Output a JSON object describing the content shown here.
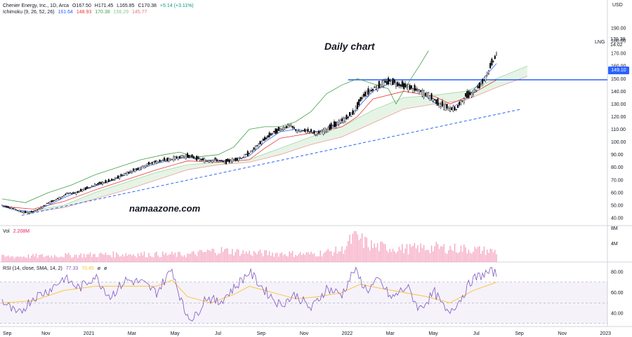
{
  "title": "Chenier Energy, Inc., 1D, Arca",
  "ohlc": {
    "open": "O167.50",
    "high": "H171.45",
    "low": "L165.85",
    "close": "C170.38",
    "change": "+5.14 (+3.11%)"
  },
  "ichimoku": {
    "label": "Ichimoku (9, 26, 52, 26)",
    "values": [
      "161.64",
      "148.93",
      "170.38",
      "156.29",
      "145.77"
    ]
  },
  "volume": {
    "label": "Vol",
    "value": "2.208M"
  },
  "rsi": {
    "label": "RSI (14, close, SMA, 14, 2)",
    "values": [
      "77.33",
      "70.45",
      "ø",
      "ø"
    ]
  },
  "symbol": "LNG",
  "currency": "USD",
  "last_price": "170.38",
  "countdown": "14:02",
  "marked_level": "149.10",
  "annotation_text": "Daily chart",
  "watermark_text": "namaazone.com",
  "colors": {
    "tenkan": "#2962ff",
    "kijun": "#e53935",
    "chikou": "#43a047",
    "span_a": "#a5d6a7",
    "span_b": "#ef9a9a",
    "rsi": "#7e57c2",
    "rsi_ma": "#fbc02d",
    "volume": "#f48fb1",
    "level": "#2962ff",
    "trendline": "#2962ff"
  },
  "chart_data": {
    "type": "candlestick",
    "price_axis": {
      "min": 40,
      "max": 190,
      "ticks": [
        "190.00",
        "180.00",
        "170.00",
        "160.00",
        "150.00",
        "140.00",
        "130.00",
        "120.00",
        "110.00",
        "100.00",
        "90.00",
        "80.00",
        "70.00",
        "60.00",
        "50.00",
        "40.00"
      ]
    },
    "x_ticks": [
      "Sep",
      "Nov",
      "2021",
      "Mar",
      "May",
      "Jul",
      "Sep",
      "Nov",
      "2022",
      "Mar",
      "May",
      "Jul",
      "Sep",
      "Nov",
      "2023"
    ],
    "volume_axis": {
      "ticks": [
        "8M",
        "4M"
      ]
    },
    "rsi_axis": {
      "min": 20,
      "max": 90,
      "ticks": [
        "80.00",
        "60.00",
        "40.00"
      ],
      "bands": [
        70,
        50,
        30
      ]
    },
    "price_path": [
      [
        0,
        50
      ],
      [
        6,
        48
      ],
      [
        12,
        45
      ],
      [
        18,
        44
      ],
      [
        24,
        47
      ],
      [
        30,
        52
      ],
      [
        36,
        55
      ],
      [
        42,
        59
      ],
      [
        48,
        60
      ],
      [
        54,
        63
      ],
      [
        60,
        66
      ],
      [
        66,
        68
      ],
      [
        72,
        70
      ],
      [
        78,
        74
      ],
      [
        84,
        77
      ],
      [
        90,
        80
      ],
      [
        96,
        83
      ],
      [
        102,
        85
      ],
      [
        108,
        86
      ],
      [
        114,
        88
      ],
      [
        120,
        89
      ],
      [
        126,
        87
      ],
      [
        132,
        85
      ],
      [
        138,
        86
      ],
      [
        144,
        84
      ],
      [
        150,
        86
      ],
      [
        156,
        88
      ],
      [
        162,
        93
      ],
      [
        168,
        100
      ],
      [
        174,
        106
      ],
      [
        180,
        110
      ],
      [
        186,
        113
      ],
      [
        192,
        108
      ],
      [
        198,
        109
      ],
      [
        204,
        106
      ],
      [
        210,
        110
      ],
      [
        216,
        114
      ],
      [
        222,
        118
      ],
      [
        228,
        124
      ],
      [
        234,
        137
      ],
      [
        240,
        142
      ],
      [
        246,
        146
      ],
      [
        252,
        148
      ],
      [
        258,
        145
      ],
      [
        264,
        143
      ],
      [
        270,
        140
      ],
      [
        276,
        137
      ],
      [
        282,
        131
      ],
      [
        288,
        127
      ],
      [
        294,
        126
      ],
      [
        300,
        136
      ],
      [
        306,
        140
      ],
      [
        312,
        149
      ],
      [
        316,
        159
      ],
      [
        320,
        170
      ]
    ],
    "tenkan_path": [
      [
        0,
        49
      ],
      [
        10,
        46
      ],
      [
        20,
        45
      ],
      [
        30,
        50
      ],
      [
        40,
        56
      ],
      [
        50,
        61
      ],
      [
        60,
        65
      ],
      [
        70,
        69
      ],
      [
        80,
        74
      ],
      [
        90,
        79
      ],
      [
        100,
        83
      ],
      [
        110,
        86
      ],
      [
        120,
        88
      ],
      [
        130,
        86
      ],
      [
        140,
        85
      ],
      [
        150,
        85
      ],
      [
        160,
        89
      ],
      [
        170,
        100
      ],
      [
        180,
        108
      ],
      [
        190,
        110
      ],
      [
        200,
        108
      ],
      [
        210,
        109
      ],
      [
        220,
        115
      ],
      [
        230,
        127
      ],
      [
        240,
        140
      ],
      [
        250,
        146
      ],
      [
        260,
        145
      ],
      [
        270,
        140
      ],
      [
        280,
        131
      ],
      [
        290,
        126
      ],
      [
        300,
        134
      ],
      [
        310,
        148
      ],
      [
        320,
        162
      ]
    ],
    "kijun_path": [
      [
        0,
        49
      ],
      [
        20,
        47
      ],
      [
        40,
        53
      ],
      [
        60,
        62
      ],
      [
        80,
        70
      ],
      [
        100,
        78
      ],
      [
        120,
        85
      ],
      [
        140,
        84
      ],
      [
        160,
        86
      ],
      [
        170,
        95
      ],
      [
        180,
        103
      ],
      [
        200,
        107
      ],
      [
        220,
        112
      ],
      [
        230,
        120
      ],
      [
        240,
        134
      ],
      [
        260,
        140
      ],
      [
        280,
        136
      ],
      [
        290,
        130
      ],
      [
        300,
        135
      ],
      [
        310,
        142
      ],
      [
        320,
        149
      ]
    ],
    "chikou_path": [
      [
        0,
        55
      ],
      [
        15,
        52
      ],
      [
        30,
        60
      ],
      [
        45,
        66
      ],
      [
        60,
        74
      ],
      [
        75,
        80
      ],
      [
        90,
        86
      ],
      [
        105,
        90
      ],
      [
        115,
        92
      ],
      [
        125,
        88
      ],
      [
        140,
        90
      ],
      [
        150,
        96
      ],
      [
        160,
        110
      ],
      [
        170,
        112
      ],
      [
        180,
        112
      ],
      [
        190,
        116
      ],
      [
        200,
        124
      ],
      [
        210,
        138
      ],
      [
        220,
        145
      ],
      [
        230,
        150
      ],
      [
        240,
        146
      ],
      [
        250,
        142
      ],
      [
        255,
        130
      ],
      [
        262,
        145
      ],
      [
        270,
        160
      ],
      [
        276,
        172
      ]
    ],
    "span_a_path": [
      [
        20,
        46
      ],
      [
        40,
        50
      ],
      [
        60,
        60
      ],
      [
        80,
        68
      ],
      [
        100,
        76
      ],
      [
        120,
        82
      ],
      [
        140,
        84
      ],
      [
        160,
        86
      ],
      [
        180,
        95
      ],
      [
        200,
        104
      ],
      [
        220,
        112
      ],
      [
        240,
        125
      ],
      [
        260,
        135
      ],
      [
        280,
        137
      ],
      [
        300,
        140
      ],
      [
        320,
        150
      ],
      [
        340,
        160
      ]
    ],
    "span_b_path": [
      [
        20,
        45
      ],
      [
        40,
        48
      ],
      [
        60,
        55
      ],
      [
        80,
        62
      ],
      [
        100,
        70
      ],
      [
        120,
        78
      ],
      [
        140,
        82
      ],
      [
        160,
        84
      ],
      [
        180,
        90
      ],
      [
        200,
        98
      ],
      [
        220,
        104
      ],
      [
        240,
        115
      ],
      [
        260,
        126
      ],
      [
        280,
        130
      ],
      [
        300,
        133
      ],
      [
        320,
        143
      ],
      [
        340,
        152
      ]
    ],
    "trendline": [
      [
        0,
        42
      ],
      [
        330,
        126
      ]
    ],
    "horizontal_level": {
      "value": 149.1,
      "from_bar": 224
    },
    "rsi_path": [
      [
        0,
        52
      ],
      [
        10,
        38
      ],
      [
        20,
        55
      ],
      [
        30,
        62
      ],
      [
        40,
        74
      ],
      [
        50,
        64
      ],
      [
        60,
        76
      ],
      [
        70,
        56
      ],
      [
        80,
        72
      ],
      [
        90,
        70
      ],
      [
        100,
        60
      ],
      [
        110,
        83
      ],
      [
        118,
        42
      ],
      [
        124,
        34
      ],
      [
        132,
        56
      ],
      [
        140,
        50
      ],
      [
        150,
        64
      ],
      [
        160,
        80
      ],
      [
        170,
        62
      ],
      [
        180,
        48
      ],
      [
        190,
        58
      ],
      [
        200,
        44
      ],
      [
        210,
        64
      ],
      [
        220,
        58
      ],
      [
        228,
        82
      ],
      [
        236,
        62
      ],
      [
        244,
        72
      ],
      [
        252,
        54
      ],
      [
        262,
        66
      ],
      [
        270,
        44
      ],
      [
        280,
        60
      ],
      [
        288,
        40
      ],
      [
        296,
        52
      ],
      [
        304,
        72
      ],
      [
        312,
        78
      ],
      [
        318,
        80
      ],
      [
        320,
        77
      ]
    ],
    "rsi_ma_path": [
      [
        0,
        50
      ],
      [
        20,
        52
      ],
      [
        40,
        62
      ],
      [
        60,
        66
      ],
      [
        80,
        66
      ],
      [
        100,
        66
      ],
      [
        110,
        72
      ],
      [
        120,
        56
      ],
      [
        135,
        50
      ],
      [
        150,
        58
      ],
      [
        160,
        66
      ],
      [
        175,
        60
      ],
      [
        190,
        54
      ],
      [
        205,
        56
      ],
      [
        220,
        60
      ],
      [
        232,
        68
      ],
      [
        245,
        64
      ],
      [
        260,
        60
      ],
      [
        275,
        56
      ],
      [
        290,
        50
      ],
      [
        305,
        62
      ],
      [
        320,
        70
      ]
    ],
    "volume_profile": [
      [
        0,
        0.2
      ],
      [
        40,
        0.25
      ],
      [
        80,
        0.3
      ],
      [
        120,
        0.28
      ],
      [
        140,
        0.45
      ],
      [
        160,
        0.35
      ],
      [
        200,
        0.3
      ],
      [
        220,
        0.45
      ],
      [
        228,
        0.95
      ],
      [
        240,
        0.6
      ],
      [
        260,
        0.5
      ],
      [
        280,
        0.55
      ],
      [
        300,
        0.5
      ],
      [
        320,
        0.4
      ]
    ]
  }
}
